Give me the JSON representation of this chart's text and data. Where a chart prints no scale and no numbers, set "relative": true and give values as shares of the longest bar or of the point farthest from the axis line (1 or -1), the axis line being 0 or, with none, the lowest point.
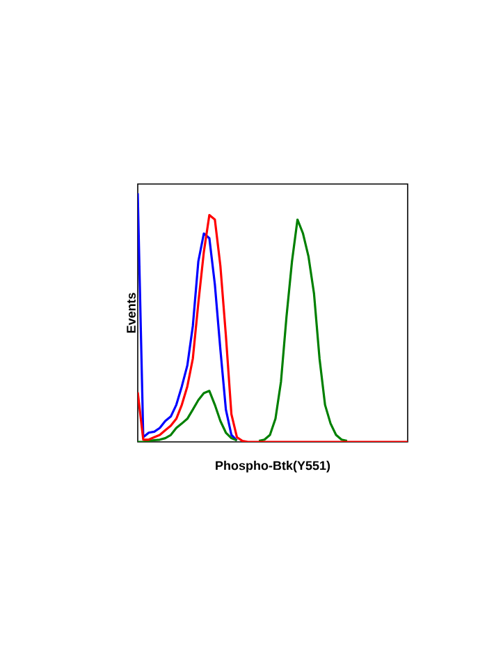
{
  "chart_data": {
    "type": "line",
    "relative": true,
    "xlabel": "Phospho-Btk(Y551)",
    "ylabel": "Events",
    "categories": [
      null,
      null,
      null,
      null,
      null,
      null,
      null,
      null,
      null,
      null,
      null,
      null,
      null,
      null,
      null,
      null,
      null,
      null,
      null,
      null,
      null,
      null,
      null,
      null,
      null,
      null,
      null,
      null,
      null,
      null,
      null,
      null,
      null,
      null,
      null,
      null,
      null,
      null,
      null,
      null,
      null,
      null,
      null,
      null,
      null,
      null,
      null,
      null,
      null,
      null
    ],
    "series": [
      {
        "color": "#0000ff",
        "values": [
          1,
          0.019,
          0.037,
          0.041,
          0.056,
          0.084,
          0.102,
          0.149,
          0.223,
          0.307,
          0.466,
          0.726,
          0.838,
          0.819,
          0.633,
          0.372,
          0.13,
          0.028,
          0.006,
          null,
          null,
          null,
          null,
          null,
          null,
          null,
          null,
          null,
          null,
          null,
          null,
          null,
          null,
          null,
          null,
          null,
          null,
          null,
          null,
          null,
          null,
          null,
          null,
          null,
          null,
          null,
          null,
          null,
          null,
          null
        ]
      },
      {
        "color": "#008000",
        "values": [
          0,
          0,
          0.004,
          0.007,
          0.009,
          0.015,
          0.028,
          0.056,
          0.074,
          0.093,
          0.13,
          0.168,
          0.196,
          0.205,
          0.149,
          0.084,
          0.037,
          0.015,
          0.006,
          null,
          null,
          null,
          0.004,
          0.009,
          0.028,
          0.093,
          0.242,
          0.503,
          0.726,
          0.894,
          0.838,
          0.745,
          0.596,
          0.335,
          0.149,
          0.074,
          0.028,
          0.009,
          0.004,
          null,
          null,
          null,
          null,
          null,
          null,
          null,
          null,
          null,
          null,
          null
        ]
      },
      {
        "color": "#ff0000",
        "values": [
          0.199,
          0.009,
          0.009,
          0.019,
          0.028,
          0.047,
          0.065,
          0.093,
          0.149,
          0.223,
          0.335,
          0.559,
          0.764,
          0.912,
          0.894,
          0.708,
          0.428,
          0.112,
          0.019,
          0.004,
          0,
          0,
          0,
          0,
          0,
          0,
          0,
          0,
          0,
          0,
          0,
          0,
          0,
          0,
          0,
          0,
          0,
          0,
          0,
          0,
          0,
          0,
          0,
          0,
          0,
          0,
          0,
          0,
          0,
          0
        ]
      }
    ]
  }
}
